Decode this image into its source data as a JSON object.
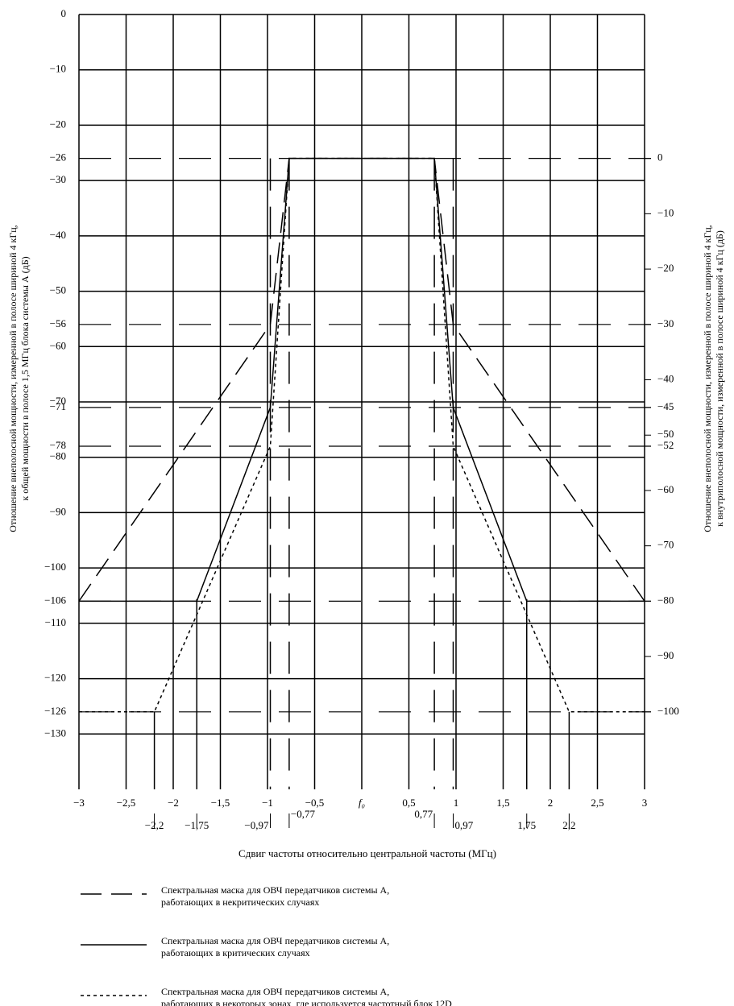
{
  "chart_data": {
    "type": "line",
    "ylabel": "Отношение внеполосной мощности, измеренной в полосе шириной 4 кГц,\nк общей мощности в полосе 1,5 МГц блока системы А (дБ)",
    "y2label": "Отношение внеполосной мощности, измеренной в полосе шириной 4 кГц,\nк внутриполосной мощности, измеренной в полосе шириной 4 кГц (дБ)",
    "xlabel": "Сдвиг частоты относительно центральной частоты (МГц)",
    "xlim": [
      -3,
      3
    ],
    "ylim": [
      -140,
      0
    ],
    "y2lim": [
      -114,
      26
    ],
    "grid": true,
    "xticks": [
      {
        "value": -3,
        "label": "−3"
      },
      {
        "value": -2.5,
        "label": "−2,5"
      },
      {
        "value": -2,
        "label": "−2"
      },
      {
        "value": -1.5,
        "label": "−1,5"
      },
      {
        "value": -1,
        "label": "−1"
      },
      {
        "value": -0.5,
        "label": "−0,5"
      },
      {
        "value": 0,
        "label": "f₀"
      },
      {
        "value": 0.5,
        "label": "0,5"
      },
      1,
      {
        "value": 1.5,
        "label": "1,5"
      },
      2,
      {
        "value": 2.5,
        "label": "2,5"
      },
      3
    ],
    "xticks2": [
      {
        "value": -2.2,
        "label": "−2,2"
      },
      {
        "value": -1.75,
        "label": "−1,75"
      },
      {
        "value": -0.97,
        "label": "−0,97"
      },
      {
        "value": -0.77,
        "label": "−0,77"
      },
      {
        "value": 0.77,
        "label": "0,77"
      },
      {
        "value": 0.97,
        "label": "0,97"
      },
      {
        "value": 1.75,
        "label": "1,75"
      },
      {
        "value": 2.2,
        "label": "2,2"
      }
    ],
    "yticks": [
      0,
      {
        "value": -10,
        "label": "−10"
      },
      {
        "value": -20,
        "label": "−20"
      },
      {
        "value": -26,
        "label": "−26"
      },
      {
        "value": -30,
        "label": "−30"
      },
      {
        "value": -40,
        "label": "−40"
      },
      {
        "value": -50,
        "label": "−50"
      },
      {
        "value": -56,
        "label": "−56"
      },
      {
        "value": -60,
        "label": "−60"
      },
      {
        "value": -70,
        "label": "−70"
      },
      {
        "value": -71,
        "label": "−71"
      },
      {
        "value": -78,
        "label": "−78"
      },
      {
        "value": -80,
        "label": "−80"
      },
      {
        "value": -90,
        "label": "−90"
      },
      {
        "value": -100,
        "label": "−100"
      },
      {
        "value": -106,
        "label": "−106"
      },
      {
        "value": -110,
        "label": "−110"
      },
      {
        "value": -120,
        "label": "−120"
      },
      {
        "value": -126,
        "label": "−126"
      },
      {
        "value": -130,
        "label": "−130"
      }
    ],
    "y2ticks": [
      0,
      {
        "value": -10,
        "label": "−10"
      },
      {
        "value": -20,
        "label": "−20"
      },
      {
        "value": -30,
        "label": "−30"
      },
      {
        "value": -40,
        "label": "−40"
      },
      {
        "value": -45,
        "label": "−45"
      },
      {
        "value": -50,
        "label": "−50"
      },
      {
        "value": -52,
        "label": "−52"
      },
      {
        "value": -60,
        "label": "−60"
      },
      {
        "value": -70,
        "label": "−70"
      },
      {
        "value": -80,
        "label": "−80"
      },
      {
        "value": -90,
        "label": "−90"
      },
      {
        "value": -100,
        "label": "−100"
      }
    ],
    "series": [
      {
        "name": "Спектральная маска для ОВЧ передатчиков системы А,\nработающих в некритических случаях",
        "color": "#000000",
        "dash": "dashed",
        "x": [
          -3,
          -0.97,
          -0.77,
          0.77,
          0.97,
          3
        ],
        "values": [
          -106,
          -56,
          -26,
          -26,
          -56,
          -106
        ]
      },
      {
        "name": "Спектральная маска для ОВЧ передатчиков системы А,\nработающих в критических случаях",
        "color": "#000000",
        "dash": "solid",
        "x": [
          -3,
          -1.75,
          -0.97,
          -0.77,
          0.77,
          0.97,
          1.75,
          3
        ],
        "values": [
          -106,
          -106,
          -71,
          -26,
          -26,
          -71,
          -106,
          -106
        ]
      },
      {
        "name": "Спектральная маска для ОВЧ передатчиков системы А,\nработающих в некоторых зонах, где используется частотный блок 12D",
        "color": "#000000",
        "dash": "dotted",
        "x": [
          -3,
          -2.2,
          -0.97,
          -0.77,
          0.77,
          0.97,
          2.2,
          3
        ],
        "values": [
          -126,
          -126,
          -78,
          -26,
          -26,
          -78,
          -126,
          -126
        ]
      }
    ]
  }
}
